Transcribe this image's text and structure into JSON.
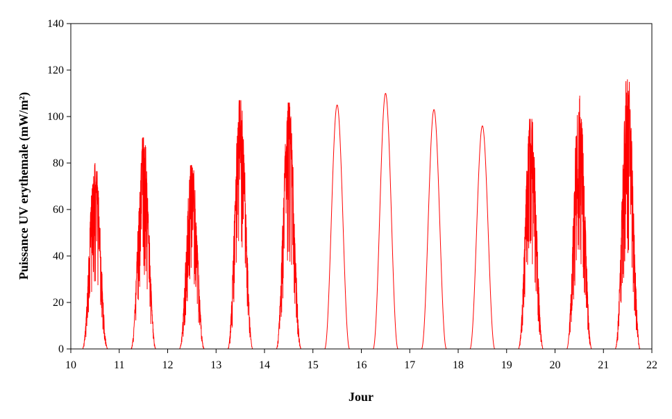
{
  "chart_data": {
    "type": "line",
    "title": "",
    "xlabel": "Jour",
    "ylabel": "Puissance UV erythemale (mW/m²)",
    "xlim": [
      10,
      22
    ],
    "ylim": [
      0,
      140
    ],
    "x_ticks": [
      10,
      11,
      12,
      13,
      14,
      15,
      16,
      17,
      18,
      19,
      20,
      21,
      22
    ],
    "y_ticks": [
      0,
      20,
      40,
      60,
      80,
      100,
      120,
      140
    ],
    "grid": false,
    "legend": "none",
    "series": [
      {
        "color": "#ff0000",
        "daily_peaks": [
          {
            "day": 10,
            "noon": 10.5,
            "peak": 80,
            "start": 10.25,
            "end": 10.78,
            "cloudy": true
          },
          {
            "day": 11,
            "noon": 11.5,
            "peak": 91,
            "start": 11.24,
            "end": 11.76,
            "cloudy": true
          },
          {
            "day": 12,
            "noon": 12.5,
            "peak": 79,
            "start": 12.24,
            "end": 12.76,
            "cloudy": true
          },
          {
            "day": 13,
            "noon": 13.5,
            "peak": 107,
            "start": 13.24,
            "end": 13.76,
            "cloudy": true
          },
          {
            "day": 14,
            "noon": 14.5,
            "peak": 106,
            "start": 14.24,
            "end": 14.76,
            "cloudy": true
          },
          {
            "day": 15,
            "noon": 15.5,
            "peak": 105,
            "start": 15.24,
            "end": 15.76,
            "cloudy": false
          },
          {
            "day": 16,
            "noon": 16.5,
            "peak": 110,
            "start": 16.24,
            "end": 16.76,
            "cloudy": false
          },
          {
            "day": 17,
            "noon": 17.5,
            "peak": 103,
            "start": 17.24,
            "end": 17.76,
            "cloudy": false
          },
          {
            "day": 18,
            "noon": 18.5,
            "peak": 96,
            "start": 18.24,
            "end": 18.76,
            "cloudy": false
          },
          {
            "day": 19,
            "noon": 19.5,
            "peak": 99,
            "start": 19.24,
            "end": 19.76,
            "cloudy": true
          },
          {
            "day": 20,
            "noon": 20.5,
            "peak": 109,
            "start": 20.24,
            "end": 20.76,
            "cloudy": true
          },
          {
            "day": 21,
            "noon": 21.5,
            "peak": 116,
            "start": 21.24,
            "end": 21.76,
            "cloudy": true
          }
        ]
      }
    ]
  }
}
